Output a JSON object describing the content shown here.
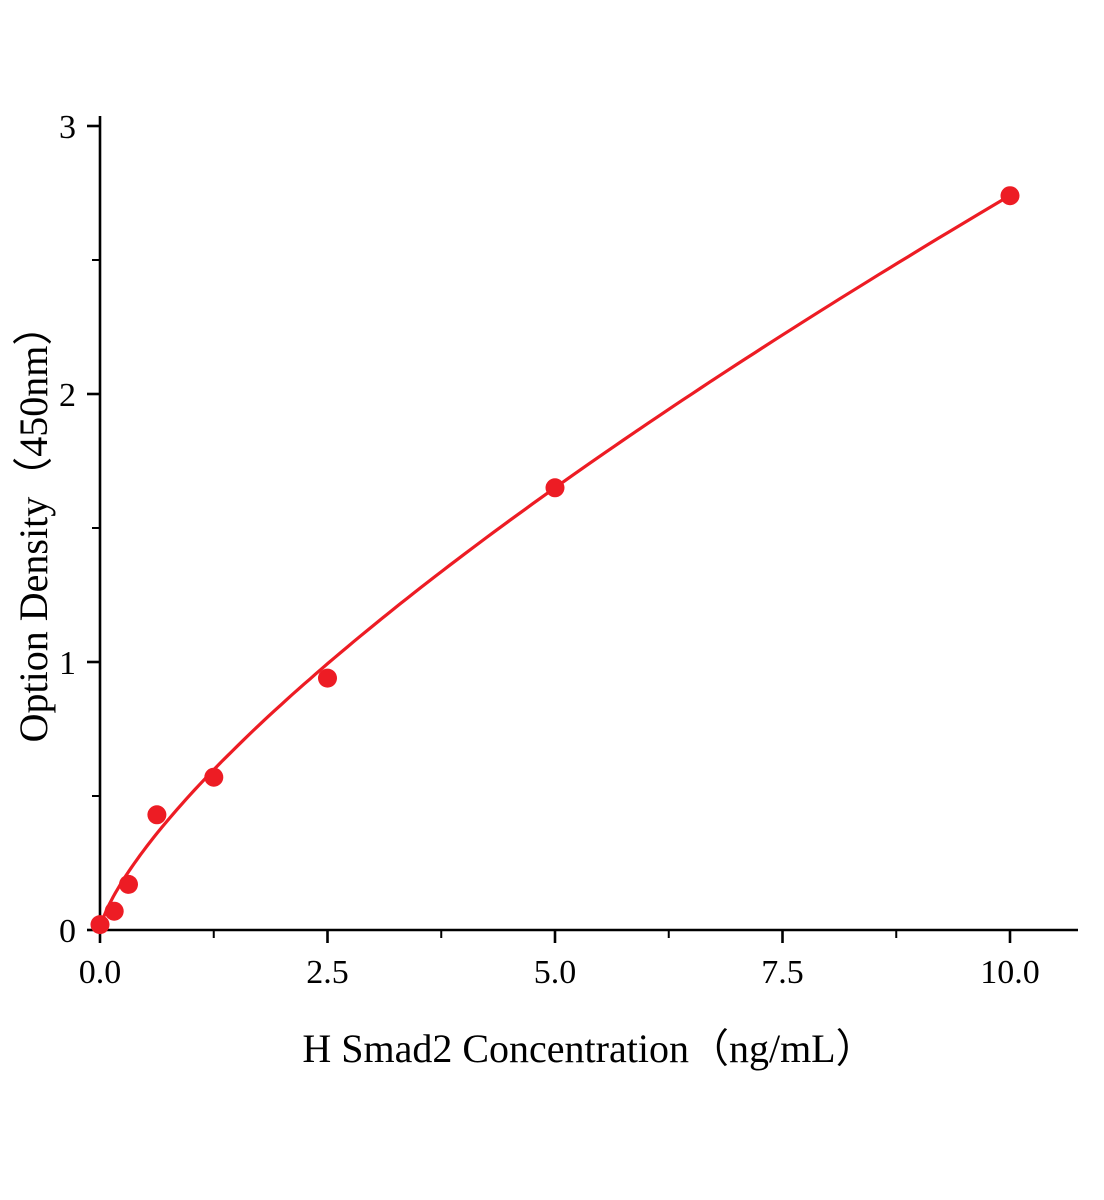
{
  "chart_data": {
    "type": "scatter",
    "title": "",
    "xlabel": "H Smad2 Concentration（ng/mL）",
    "ylabel": "Option Density（450nm）",
    "x": [
      0,
      0.156,
      0.313,
      0.625,
      1.25,
      2.5,
      5,
      10
    ],
    "y": [
      0.02,
      0.07,
      0.17,
      0.43,
      0.57,
      0.94,
      1.65,
      2.74
    ],
    "fit": {
      "type": "power",
      "a": 0.508,
      "b": 0.732
    },
    "xlim": [
      0,
      10.75
    ],
    "ylim": [
      0,
      3.03
    ],
    "x_ticks": [
      0,
      2.5,
      5,
      7.5,
      10
    ],
    "x_tick_labels": [
      "0.0",
      "2.5",
      "5.0",
      "7.5",
      "10.0"
    ],
    "x_minor_ticks": [
      1.25,
      3.75,
      6.25,
      8.75
    ],
    "y_ticks": [
      0,
      1,
      2,
      3
    ],
    "y_tick_labels": [
      "0",
      "1",
      "2",
      "3"
    ],
    "y_minor_ticks": [
      0.5,
      1.5,
      2.5
    ],
    "marker_color": "#ed1c24",
    "line_color": "#ed1c24",
    "axis_color": "#000000",
    "grid": false,
    "legend": "none"
  }
}
